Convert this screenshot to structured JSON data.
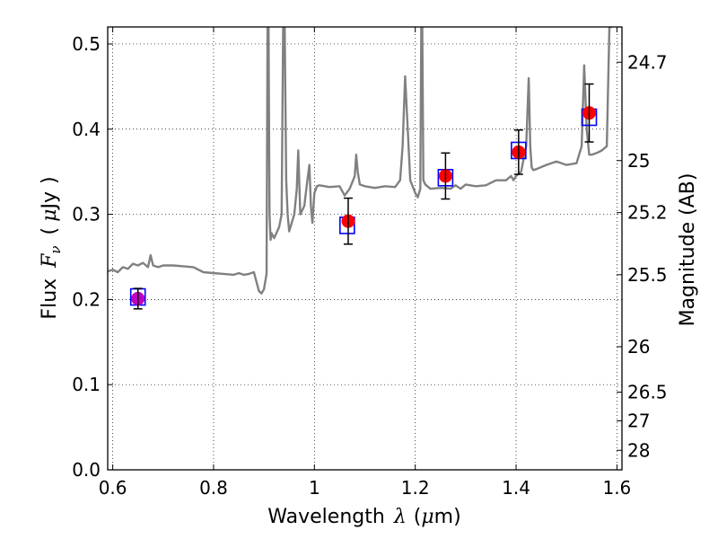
{
  "chart_data": {
    "type": "scatter",
    "xlabel": {
      "text": "Wavelength",
      "symbol": "λ",
      "unit_open": "(",
      "unit_mu": "μ",
      "unit_rest": "m)"
    },
    "ylabel": {
      "text": "Flux",
      "symbol": "F",
      "subscript": "ν",
      "unit_open": "(",
      "unit_mu": "μ",
      "unit_rest": "Jy",
      "unit_close": ")"
    },
    "y2label": "Magnitude (AB)",
    "xlim": [
      0.59,
      1.61
    ],
    "ylim": [
      0.0,
      0.52
    ],
    "grid": true,
    "grid_style": "dotted",
    "x_ticks": [
      0.6,
      0.8,
      1.0,
      1.2,
      1.4,
      1.6
    ],
    "x_tick_labels": [
      "0.6",
      "0.8",
      "1",
      "1.2",
      "1.4",
      "1.6"
    ],
    "y_ticks": [
      0.0,
      0.1,
      0.2,
      0.3,
      0.4,
      0.5
    ],
    "y_tick_labels": [
      "0.0",
      "0.1",
      "0.2",
      "0.3",
      "0.4",
      "0.5"
    ],
    "y2_ticks": [
      {
        "label": "24.7",
        "flux": 0.4786
      },
      {
        "label": "25",
        "flux": 0.3631
      },
      {
        "label": "25.2",
        "flux": 0.302
      },
      {
        "label": "25.5",
        "flux": 0.2291
      },
      {
        "label": "26",
        "flux": 0.1445
      },
      {
        "label": "26.5",
        "flux": 0.0912
      },
      {
        "label": "27",
        "flux": 0.0575
      },
      {
        "label": "28",
        "flux": 0.0229
      }
    ],
    "series": [
      {
        "kind": "line",
        "color": "#808080",
        "x": [
          0.59,
          0.6,
          0.61,
          0.62,
          0.63,
          0.64,
          0.65,
          0.66,
          0.67,
          0.675,
          0.68,
          0.69,
          0.7,
          0.72,
          0.74,
          0.76,
          0.78,
          0.8,
          0.82,
          0.84,
          0.85,
          0.86,
          0.87,
          0.88,
          0.89,
          0.895,
          0.9,
          0.905,
          0.907,
          0.909,
          0.911,
          0.913,
          0.915,
          0.92,
          0.93,
          0.935,
          0.938,
          0.941,
          0.944,
          0.947,
          0.95,
          0.96,
          0.965,
          0.968,
          0.972,
          0.98,
          0.985,
          0.99,
          0.993,
          0.996,
          1.0,
          1.005,
          1.01,
          1.03,
          1.05,
          1.06,
          1.07,
          1.08,
          1.083,
          1.086,
          1.09,
          1.1,
          1.12,
          1.14,
          1.16,
          1.17,
          1.175,
          1.18,
          1.185,
          1.19,
          1.2,
          1.205,
          1.21,
          1.212,
          1.214,
          1.216,
          1.22,
          1.23,
          1.25,
          1.27,
          1.28,
          1.29,
          1.3,
          1.32,
          1.34,
          1.36,
          1.38,
          1.39,
          1.395,
          1.4,
          1.41,
          1.42,
          1.425,
          1.428,
          1.431,
          1.434,
          1.44,
          1.46,
          1.48,
          1.5,
          1.52,
          1.53,
          1.535,
          1.54,
          1.545,
          1.55,
          1.56,
          1.57,
          1.58,
          1.585,
          1.59
        ],
        "y": [
          0.233,
          0.235,
          0.232,
          0.238,
          0.236,
          0.242,
          0.24,
          0.243,
          0.238,
          0.252,
          0.24,
          0.238,
          0.24,
          0.24,
          0.239,
          0.238,
          0.232,
          0.231,
          0.23,
          0.229,
          0.231,
          0.229,
          0.23,
          0.232,
          0.21,
          0.207,
          0.212,
          0.23,
          0.52,
          0.52,
          0.3,
          0.27,
          0.278,
          0.272,
          0.285,
          0.3,
          0.52,
          0.52,
          0.34,
          0.3,
          0.28,
          0.3,
          0.33,
          0.375,
          0.3,
          0.31,
          0.335,
          0.358,
          0.31,
          0.29,
          0.325,
          0.333,
          0.334,
          0.332,
          0.333,
          0.322,
          0.33,
          0.345,
          0.37,
          0.35,
          0.335,
          0.333,
          0.331,
          0.333,
          0.332,
          0.34,
          0.38,
          0.462,
          0.4,
          0.34,
          0.325,
          0.32,
          0.33,
          0.52,
          0.52,
          0.34,
          0.335,
          0.33,
          0.331,
          0.33,
          0.334,
          0.33,
          0.335,
          0.333,
          0.334,
          0.34,
          0.34,
          0.345,
          0.34,
          0.345,
          0.35,
          0.38,
          0.46,
          0.38,
          0.355,
          0.352,
          0.353,
          0.358,
          0.362,
          0.358,
          0.36,
          0.38,
          0.475,
          0.4,
          0.37,
          0.37,
          0.372,
          0.375,
          0.38,
          0.52,
          0.52
        ]
      },
      {
        "kind": "model_squares",
        "color": "#0000ff",
        "x": [
          0.65,
          1.065,
          1.26,
          1.405,
          1.545
        ],
        "y": [
          0.203,
          0.287,
          0.343,
          0.375,
          0.414
        ]
      },
      {
        "kind": "observed_points",
        "color": "#ff0000",
        "x": [
          0.65,
          1.067,
          1.26,
          1.405,
          1.545
        ],
        "y": [
          0.201,
          0.292,
          0.345,
          0.373,
          0.419
        ],
        "yerr": [
          0.012,
          0.027,
          0.027,
          0.026,
          0.034
        ]
      }
    ]
  },
  "colors": {
    "point_first": "#c000c0",
    "point": "#ff0000",
    "errorbar": "#000000",
    "model_square": "#0000ff",
    "spectrum": "#808080"
  }
}
